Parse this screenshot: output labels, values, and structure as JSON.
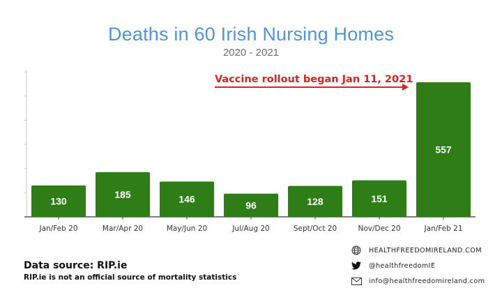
{
  "chart_data": {
    "type": "bar",
    "title": "Deaths in 60 Irish Nursing Homes",
    "subtitle": "2020 - 2021",
    "categories": [
      "Jan/Feb 20",
      "Mar/Apr 20",
      "May/Jun 20",
      "Jul/Aug 20",
      "Sept/Oct 20",
      "Nov/Dec 20",
      "Jan/Feb 21"
    ],
    "values": [
      130,
      185,
      146,
      96,
      128,
      151,
      557
    ],
    "xlabel": "",
    "ylabel": "",
    "ylim": [
      0,
      600
    ],
    "grid": false,
    "legend": "none",
    "annotation": "Vaccine rollout began Jan 11, 2021",
    "bar_color": "#2f7d17",
    "label_color": "#ffffff"
  },
  "source": {
    "title": "Data source: RIP.ie",
    "note": "RIP.ie is not an official source of mortality statistics"
  },
  "contact": {
    "website": "HEALTHFREEDOMIRELAND.COM",
    "twitter": "@healthfreedomIE",
    "email": "info@healthfreedomireland.com",
    "icons": [
      "globe-icon",
      "twitter-bird-icon",
      "envelope-icon"
    ]
  }
}
